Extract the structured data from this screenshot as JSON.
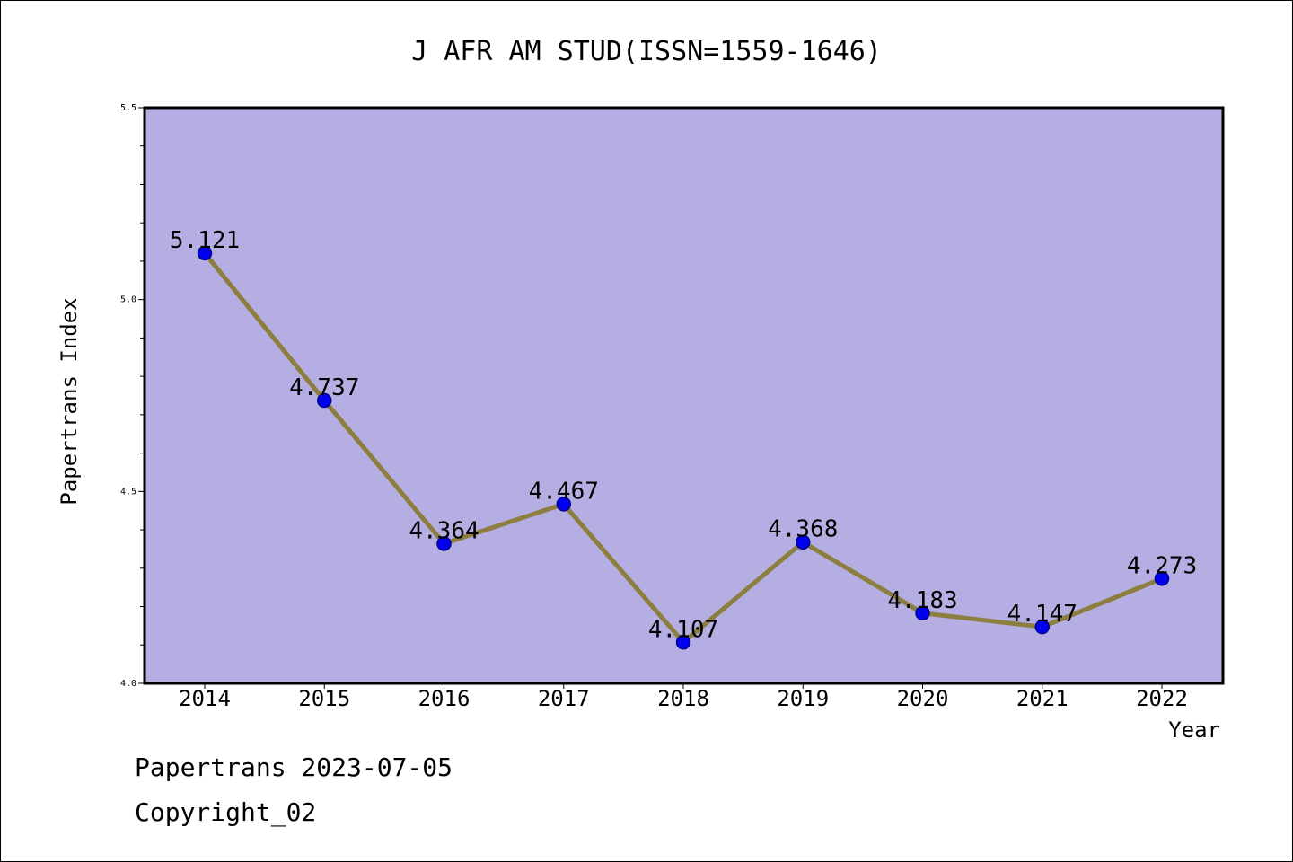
{
  "chart_data": {
    "type": "line",
    "title": "J AFR AM STUD(ISSN=1559-1646)",
    "xlabel": "Year",
    "ylabel": "Papertrans Index",
    "categories": [
      "2014",
      "2015",
      "2016",
      "2017",
      "2018",
      "2019",
      "2020",
      "2021",
      "2022"
    ],
    "series": [
      {
        "values": [
          5.121,
          4.737,
          4.364,
          4.467,
          4.107,
          4.368,
          4.183,
          4.147,
          4.273
        ],
        "labels": [
          "5.121",
          "4.737",
          "4.364",
          "4.467",
          "4.107",
          "4.368",
          "4.183",
          "4.147",
          "4.273"
        ]
      }
    ],
    "ylim": [
      4.0,
      5.5
    ],
    "yticks": [
      "4.0",
      "4.5",
      "5.0",
      "5.5"
    ],
    "grid": false,
    "legend": "none"
  },
  "footer": {
    "line1": "Papertrans 2023-07-05",
    "line2": "Copyright_02"
  },
  "colors": {
    "plot_background": "#b5aee2",
    "line": "#8c7e3e",
    "marker": "#0000ee",
    "marker_edge": "#00008b"
  }
}
